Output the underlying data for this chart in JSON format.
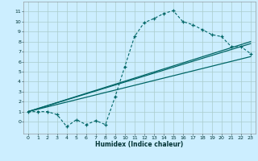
{
  "xlabel": "Humidex (Indice chaleur)",
  "bg_color": "#cceeff",
  "grid_color": "#aacccc",
  "line_color": "#006666",
  "xlim": [
    -0.5,
    23.5
  ],
  "ylim": [
    -1.2,
    12
  ],
  "xticks": [
    0,
    1,
    2,
    3,
    4,
    5,
    6,
    7,
    8,
    9,
    10,
    11,
    12,
    13,
    14,
    15,
    16,
    17,
    18,
    19,
    20,
    21,
    22,
    23
  ],
  "yticks": [
    0,
    1,
    2,
    3,
    4,
    5,
    6,
    7,
    8,
    9,
    10,
    11
  ],
  "curve_x": [
    0,
    1,
    2,
    3,
    4,
    5,
    6,
    7,
    8,
    9,
    10,
    11,
    12,
    13,
    14,
    15,
    16,
    17,
    18,
    19,
    20,
    21,
    22,
    23
  ],
  "curve_y": [
    1.0,
    1.0,
    1.0,
    0.7,
    -0.5,
    0.2,
    -0.3,
    0.1,
    -0.3,
    2.5,
    5.5,
    8.5,
    9.9,
    10.3,
    10.8,
    11.1,
    10.0,
    9.7,
    9.2,
    8.7,
    8.5,
    7.5,
    7.5,
    6.8
  ],
  "line1_x": [
    0,
    23
  ],
  "line1_y": [
    1.0,
    6.5
  ],
  "line2_x": [
    0,
    23
  ],
  "line2_y": [
    1.0,
    7.8
  ],
  "line3_x": [
    0,
    23
  ],
  "line3_y": [
    1.0,
    8.0
  ]
}
